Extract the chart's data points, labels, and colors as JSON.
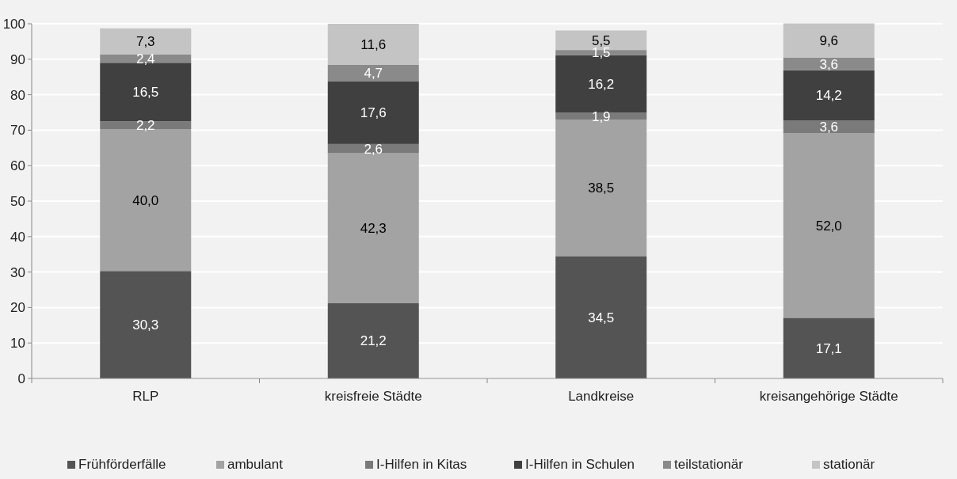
{
  "chart_data": {
    "type": "bar",
    "stacked": true,
    "categories": [
      "RLP",
      "kreisfreie Städte",
      "Landkreise",
      "kreisangehörige Städte"
    ],
    "series": [
      {
        "name": "Frühförderfälle",
        "color": "#545454",
        "values": [
          30.3,
          21.2,
          34.5,
          17.1
        ],
        "value_labels": [
          "30,3",
          "21,2",
          "34,5",
          "17,1"
        ]
      },
      {
        "name": "ambulant",
        "color": "#a3a3a3",
        "values": [
          40.0,
          42.3,
          38.5,
          52.0
        ],
        "value_labels": [
          "40,0",
          "42,3",
          "38,5",
          "52,0"
        ]
      },
      {
        "name": "I-Hilfen in Kitas",
        "color": "#7a7a7a",
        "values": [
          2.2,
          2.6,
          1.9,
          3.6
        ],
        "value_labels": [
          "2,2",
          "2,6",
          "1,9",
          "3,6"
        ]
      },
      {
        "name": "I-Hilfen in Schulen",
        "color": "#404040",
        "values": [
          16.5,
          17.6,
          16.2,
          14.2
        ],
        "value_labels": [
          "16,5",
          "17,6",
          "16,2",
          "14,2"
        ]
      },
      {
        "name": "teilstationär",
        "color": "#8a8a8a",
        "values": [
          2.4,
          4.7,
          1.5,
          3.6
        ],
        "value_labels": [
          "2,4",
          "4,7",
          "1,5",
          "3,6"
        ]
      },
      {
        "name": "stationär",
        "color": "#c4c4c4",
        "values": [
          7.3,
          11.6,
          5.5,
          9.6
        ],
        "value_labels": [
          "7,3",
          "11,6",
          "5,5",
          "9,6"
        ]
      }
    ],
    "ylim": [
      0,
      100
    ],
    "yticks": [
      0,
      10,
      20,
      30,
      40,
      50,
      60,
      70,
      80,
      90,
      100
    ],
    "grid": "y",
    "legend": "bottom"
  }
}
